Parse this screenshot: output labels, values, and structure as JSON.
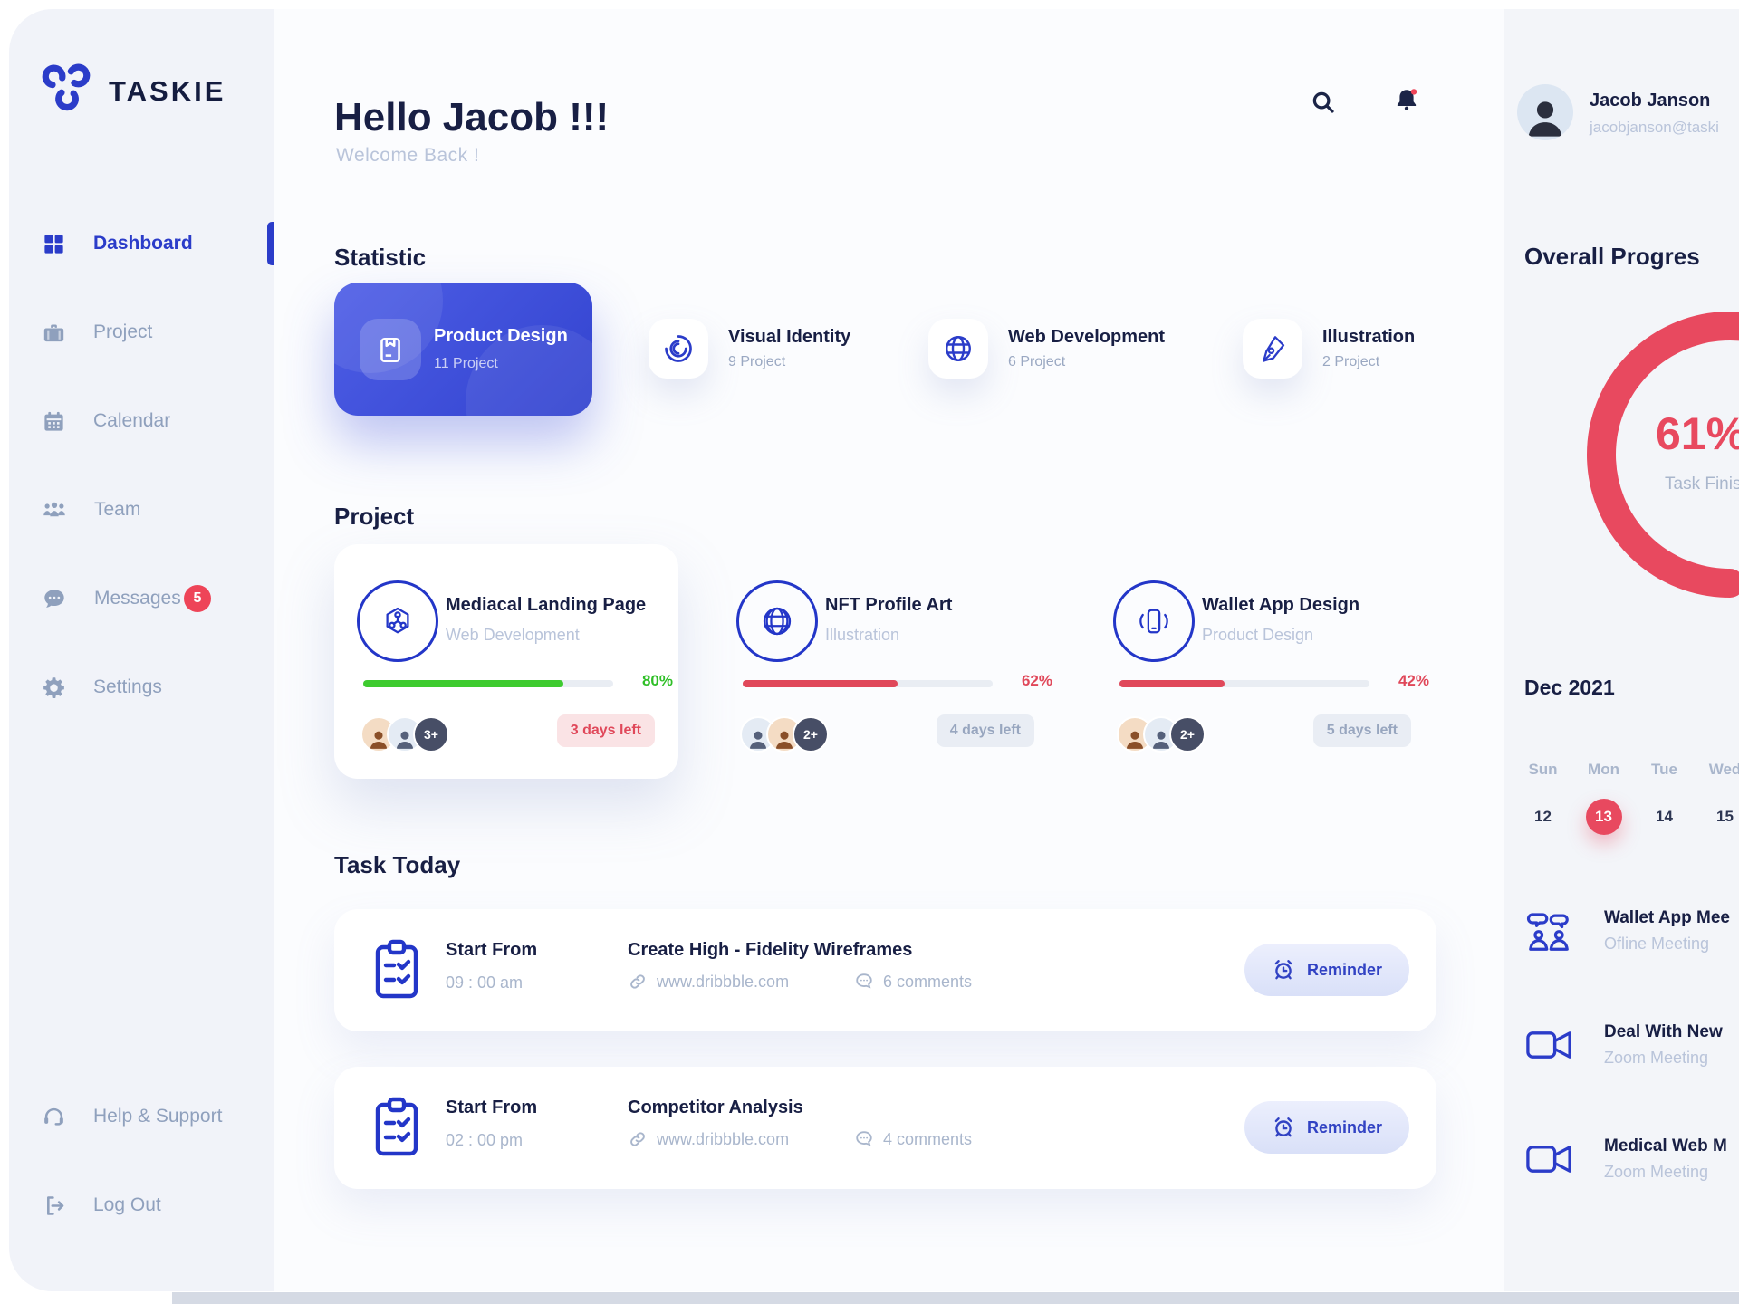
{
  "brand": {
    "name": "TASKIE"
  },
  "sidebar": {
    "items": [
      {
        "label": "Dashboard",
        "active": true
      },
      {
        "label": "Project"
      },
      {
        "label": "Calendar"
      },
      {
        "label": "Team"
      },
      {
        "label": "Messages",
        "badge": "5"
      },
      {
        "label": "Settings"
      }
    ],
    "footer": [
      {
        "label": "Help & Support"
      },
      {
        "label": "Log Out"
      }
    ]
  },
  "header": {
    "greeting": "Hello Jacob !!!",
    "welcome": "Welcome Back !"
  },
  "statistic": {
    "title": "Statistic",
    "cards": [
      {
        "title": "Product Design",
        "count": "11 Project"
      },
      {
        "title": "Visual Identity",
        "count": "9 Project"
      },
      {
        "title": "Web Development",
        "count": "6 Project"
      },
      {
        "title": "Illustration",
        "count": "2 Project"
      }
    ]
  },
  "projects": {
    "title": "Project",
    "cards": [
      {
        "title": "Mediacal Landing Page",
        "category": "Web Development",
        "progress": 80,
        "progress_label": "80%",
        "bar_variant": "green",
        "extra": "3+",
        "due": "3 days left",
        "due_variant": "red"
      },
      {
        "title": "NFT Profile Art",
        "category": "Illustration",
        "progress": 62,
        "progress_label": "62%",
        "bar_variant": "red",
        "extra": "2+",
        "due": "4 days left",
        "due_variant": "gray"
      },
      {
        "title": "Wallet App Design",
        "category": "Product Design",
        "progress": 42,
        "progress_label": "42%",
        "bar_variant": "red",
        "extra": "2+",
        "due": "5 days left",
        "due_variant": "gray"
      }
    ]
  },
  "tasks": {
    "title": "Task Today",
    "reminder_label": "Reminder",
    "items": [
      {
        "start_label": "Start From",
        "time": "09 : 00 am",
        "title": "Create High - Fidelity Wireframes",
        "link": "www.dribbble.com",
        "comments": "6 comments"
      },
      {
        "start_label": "Start From",
        "time": "02 : 00 pm",
        "title": "Competitor Analysis",
        "link": "www.dribbble.com",
        "comments": "4 comments"
      }
    ]
  },
  "profile": {
    "name": "Jacob Janson",
    "email": "jacobjanson@taski"
  },
  "overall": {
    "title": "Overall Progres",
    "value": 61,
    "percent_label": "61%",
    "caption": "Task Finis"
  },
  "calendar": {
    "month": "Dec 2021",
    "days": [
      "Sun",
      "Mon",
      "Tue",
      "Wed"
    ],
    "dates": [
      {
        "d": "12"
      },
      {
        "d": "13",
        "variant": "active"
      },
      {
        "d": "14"
      },
      {
        "d": "15"
      }
    ]
  },
  "meetings": [
    {
      "title": "Wallet App Mee",
      "subtitle": "Ofline Meeting"
    },
    {
      "title": "Deal With New",
      "subtitle": "Zoom Meeting"
    },
    {
      "title": "Medical Web M",
      "subtitle": "Zoom Meeting"
    }
  ],
  "colors": {
    "accent": "#2b3cc9",
    "navy": "#181f44",
    "red": "#e8495f",
    "green": "#3ecb2f",
    "muted_text": "#a9b6cc"
  }
}
